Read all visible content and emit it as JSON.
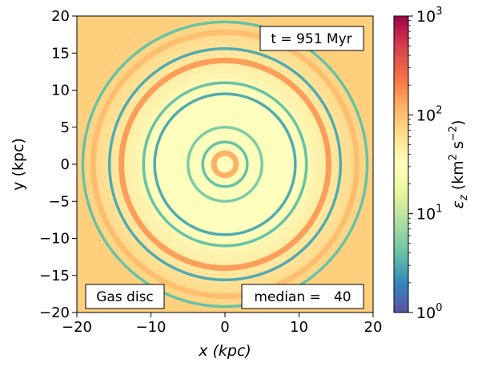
{
  "chart_data": {
    "type": "heatmap",
    "title": "",
    "xlabel": "x (kpc)",
    "ylabel": "y (kpc)",
    "xlim": [
      -20,
      20
    ],
    "ylim": [
      -20,
      20
    ],
    "xticks": [
      -20,
      -10,
      0,
      10,
      20
    ],
    "yticks": [
      -20,
      -15,
      -10,
      -5,
      0,
      5,
      10,
      15,
      20
    ],
    "xtick_labels": [
      "−20",
      "−10",
      "0",
      "10",
      "20"
    ],
    "ytick_labels": [
      "−20",
      "−15",
      "−10",
      "−5",
      "0",
      "5",
      "10",
      "15",
      "20"
    ],
    "colorbar": {
      "label_main": "ε",
      "label_sub": "z",
      "label_unit": " (km",
      "label_sup1": "2",
      "label_mid": " s",
      "label_sup2": "−2",
      "label_close": ")",
      "scale": "log",
      "range": [
        1,
        1000
      ],
      "ticks": [
        {
          "value": 1,
          "base": "10",
          "exp": "0"
        },
        {
          "value": 10,
          "base": "10",
          "exp": "1"
        },
        {
          "value": 100,
          "base": "10",
          "exp": "2"
        },
        {
          "value": 1000,
          "base": "10",
          "exp": "3"
        }
      ],
      "colormap": [
        "#5e4fa2",
        "#3288bd",
        "#66c2a5",
        "#abdda4",
        "#e6f598",
        "#ffffbf",
        "#fee08b",
        "#fdae61",
        "#f46d43",
        "#d53e4f",
        "#9e0142"
      ]
    },
    "annotations": {
      "time": "t = 951 Myr",
      "component": "Gas disc",
      "median": "median =   40"
    },
    "rings": [
      {
        "radius": 19.2,
        "value": 4
      },
      {
        "radius": 17.8,
        "value": 100
      },
      {
        "radius": 15.6,
        "value": 3
      },
      {
        "radius": 14.0,
        "value": 150
      },
      {
        "radius": 11.0,
        "value": 4
      },
      {
        "radius": 9.5,
        "value": 3
      },
      {
        "radius": 5.0,
        "value": 5
      },
      {
        "radius": 3.0,
        "value": 4
      },
      {
        "radius": 1.5,
        "value": 120
      }
    ],
    "regions": [
      {
        "name": "inner disc background",
        "radius": 10,
        "value": 30
      },
      {
        "name": "outer disc background",
        "radius": 20,
        "value": 80
      }
    ]
  }
}
